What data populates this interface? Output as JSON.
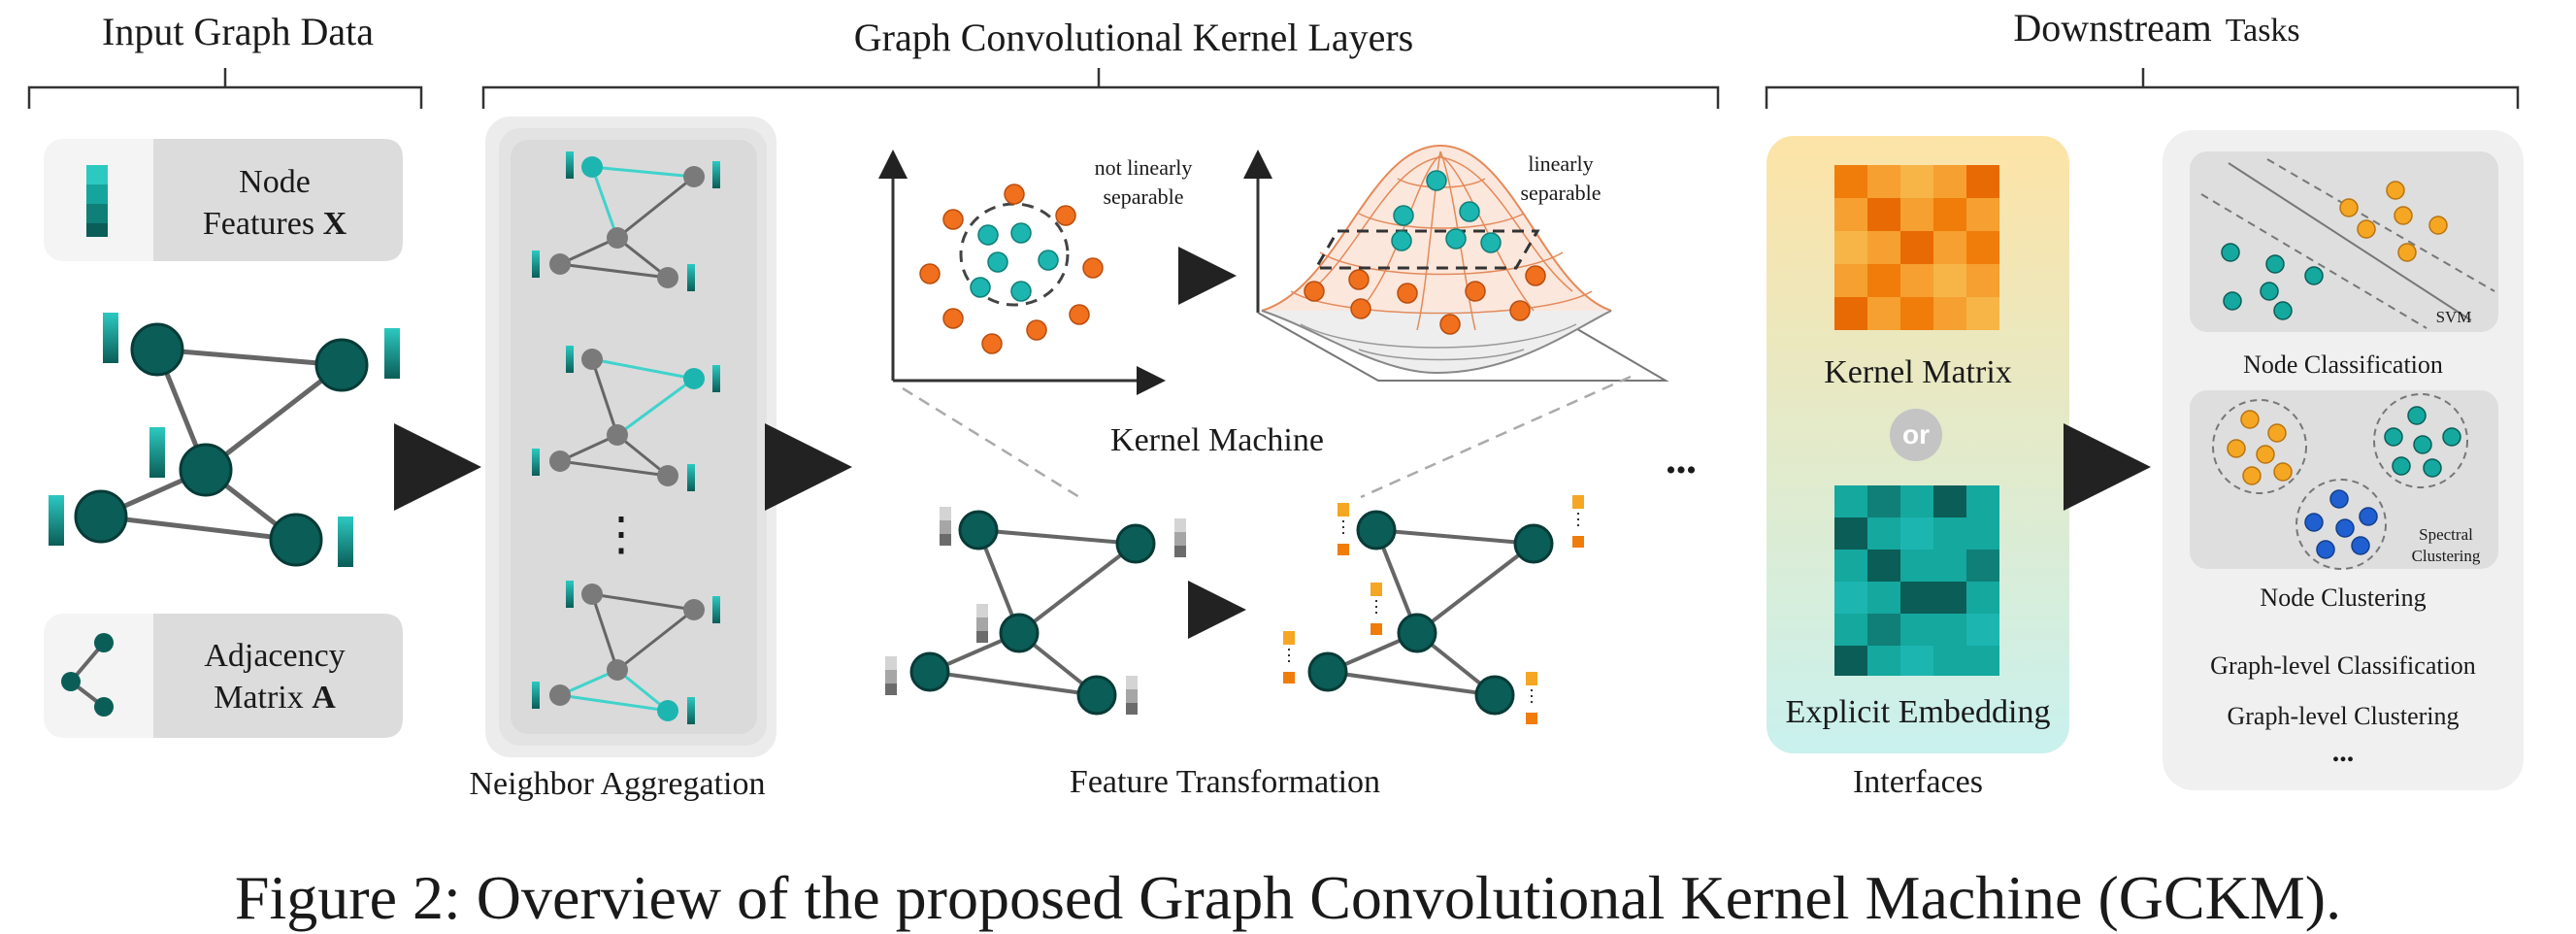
{
  "sections": {
    "input": "Input Graph Data",
    "gck": "Graph Convolutional Kernel Layers",
    "downstream_a": "Downstream",
    "downstream_b": "Tasks"
  },
  "input_graph": {
    "node_features_1": "Node",
    "node_features_2": "Features ",
    "node_features_sym": "X",
    "adjacency_1": "Adjacency",
    "adjacency_2": "Matrix ",
    "adjacency_sym": "A"
  },
  "layers": {
    "neighbor_aggregation": "Neighbor Aggregation",
    "vertical_dots": "⋮",
    "kernel_machine": "Kernel Machine",
    "not_sep_1": "not linearly",
    "not_sep_2": "separable",
    "sep_1": "linearly",
    "sep_2": "separable",
    "feature_transformation": "Feature Transformation",
    "more": "•••"
  },
  "interfaces": {
    "kernel_matrix": "Kernel Matrix",
    "or": "or",
    "explicit_embedding": "Explicit Embedding",
    "label": "Interfaces"
  },
  "downstream": {
    "svm": "SVM",
    "node_classification": "Node Classification",
    "spectral_1": "Spectral",
    "spectral_2": "Clustering",
    "node_clustering": "Node Clustering",
    "graph_classification": "Graph-level Classification",
    "graph_clustering": "Graph-level Clustering",
    "more": "..."
  },
  "caption": "Figure 2: Overview of the proposed Graph Convolutional Kernel Machine (GCKM).",
  "colors": {
    "node_dark": "#0b5d57",
    "node_gray": "#7a7a7a",
    "teal": "#1db5b0",
    "orange": "#f0701e",
    "amber": "#f5a623",
    "blue": "#1f5fd0",
    "panel": "#f0f0f0"
  }
}
